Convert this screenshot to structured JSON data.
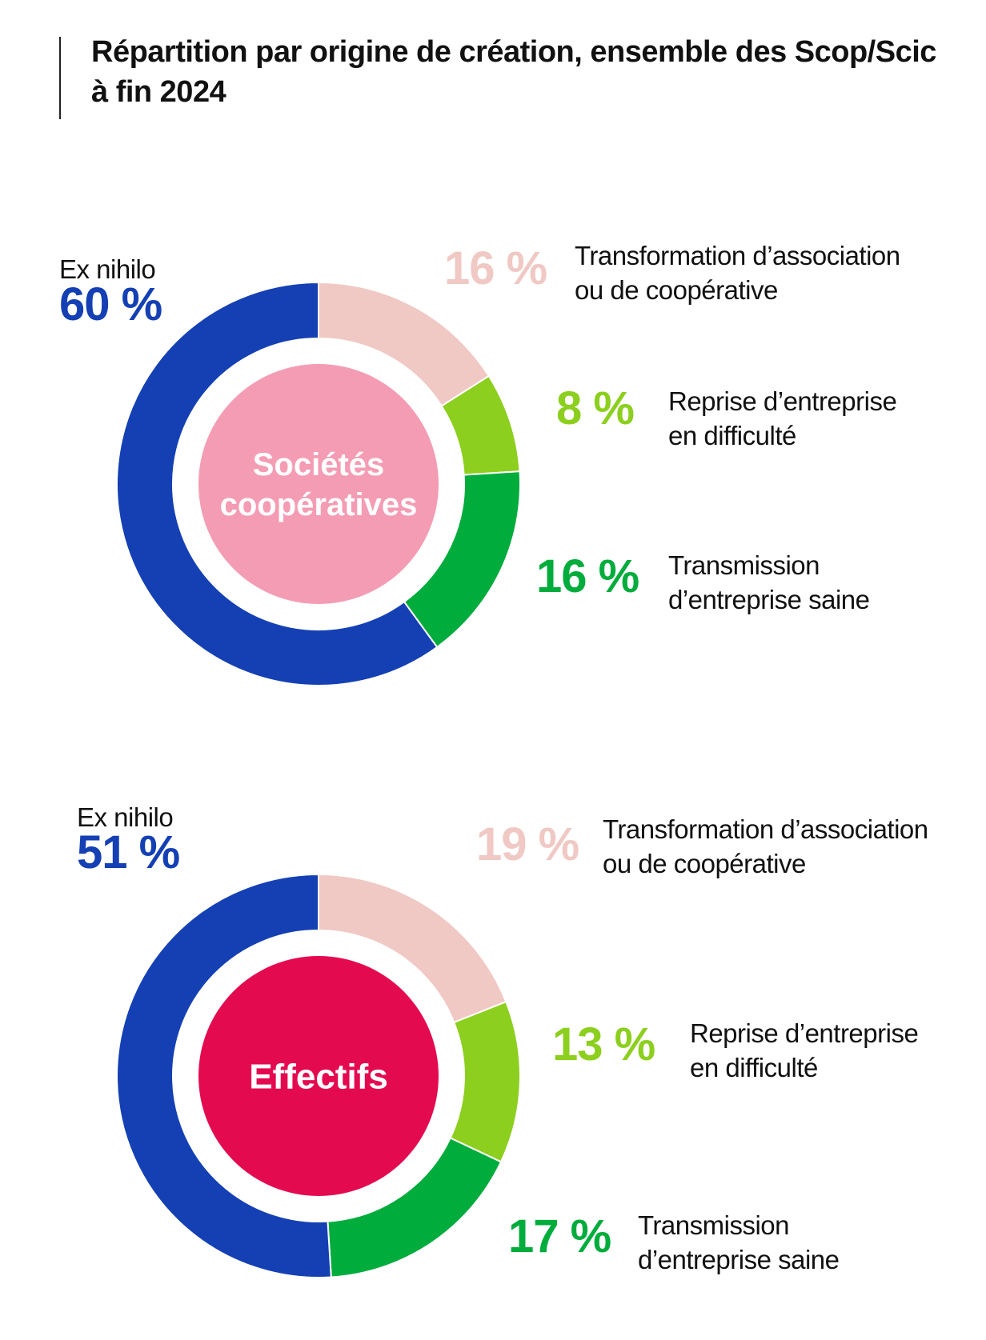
{
  "title": "Répartition par origine de création, ensemble des Scop/Scic à fin 2024",
  "colors": {
    "ex_nihilo": "#1440b4",
    "transformation": "#f0c8c4",
    "reprise": "#8ccf1e",
    "transmission": "#00ac3c",
    "center_societes": "#f49cb4",
    "center_effectifs": "#e40a50"
  },
  "chart_data": [
    {
      "type": "pie",
      "center_label": "Sociétés coopératives",
      "categories": [
        "Ex nihilo",
        "Transformation d’association ou de coopérative",
        "Reprise d’entreprise en difficulté",
        "Transmission d’entreprise saine"
      ],
      "values": [
        60,
        16,
        8,
        16
      ],
      "value_labels": [
        "60 %",
        "16 %",
        "8 %",
        "16 %"
      ],
      "label_lines": [
        [
          "Ex nihilo"
        ],
        [
          "Transformation d’association",
          "ou de coopérative"
        ],
        [
          "Reprise d’entreprise",
          "en difficulté"
        ],
        [
          "Transmission",
          "d’entreprise saine"
        ]
      ]
    },
    {
      "type": "pie",
      "center_label": "Effectifs",
      "categories": [
        "Ex nihilo",
        "Transformation d’association ou de coopérative",
        "Reprise d’entreprise en difficulté",
        "Transmission d’entreprise saine"
      ],
      "values": [
        51,
        19,
        13,
        17
      ],
      "value_labels": [
        "51 %",
        "19 %",
        "13 %",
        "17 %"
      ],
      "label_lines": [
        [
          "Ex nihilo"
        ],
        [
          "Transformation d’association",
          "ou de coopérative"
        ],
        [
          "Reprise d’entreprise",
          "en difficulté"
        ],
        [
          "Transmission",
          "d’entreprise saine"
        ]
      ]
    }
  ]
}
